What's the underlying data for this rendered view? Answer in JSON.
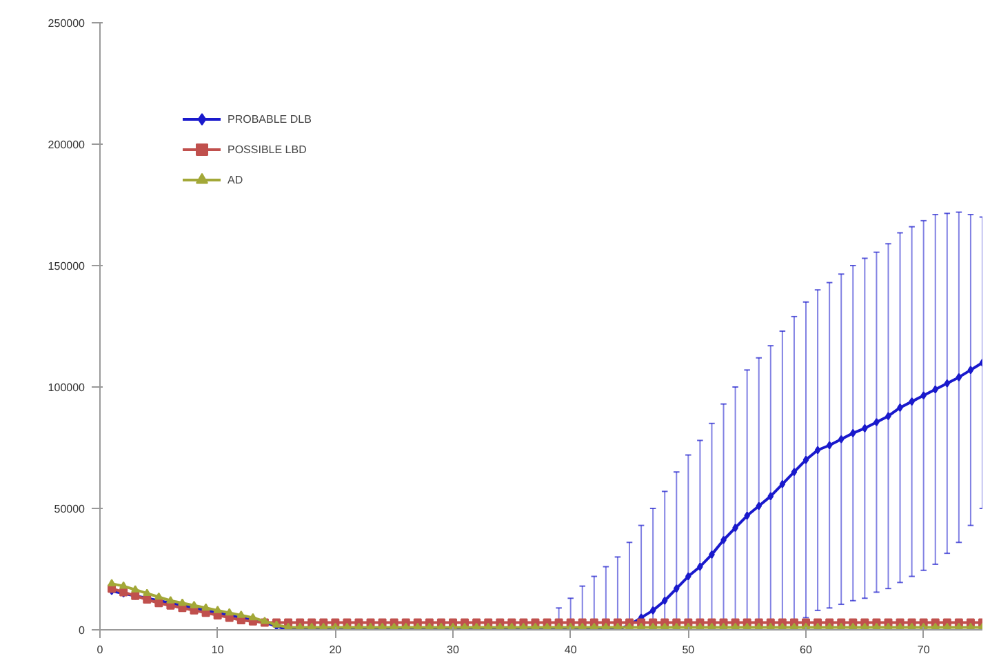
{
  "chart_data": {
    "type": "line",
    "xlim": [
      0,
      75
    ],
    "ylim": [
      0,
      250000
    ],
    "xticks": [
      0,
      10,
      20,
      30,
      40,
      50,
      60,
      70
    ],
    "yticks": [
      0,
      50000,
      100000,
      150000,
      200000,
      250000
    ],
    "grid": false,
    "legend": "top left",
    "line_style": "solid",
    "x": [
      1,
      2,
      3,
      4,
      5,
      6,
      7,
      8,
      9,
      10,
      11,
      12,
      13,
      14,
      15,
      16,
      17,
      18,
      19,
      20,
      21,
      22,
      23,
      24,
      25,
      26,
      27,
      28,
      29,
      30,
      31,
      32,
      33,
      34,
      35,
      36,
      37,
      38,
      39,
      40,
      41,
      42,
      43,
      44,
      45,
      46,
      47,
      48,
      49,
      50,
      51,
      52,
      53,
      54,
      55,
      56,
      57,
      58,
      59,
      60,
      61,
      62,
      63,
      64,
      65,
      66,
      67,
      68,
      69,
      70,
      71,
      72,
      73,
      74,
      75
    ],
    "series": [
      {
        "name": "PROBABLE DLB",
        "color": "#1a1acc",
        "marker": "diamond",
        "values": [
          16000,
          15000,
          14000,
          13000,
          12000,
          11000,
          10000,
          9000,
          8000,
          7000,
          6000,
          5000,
          4000,
          3000,
          1500,
          0,
          0,
          0,
          0,
          0,
          0,
          0,
          0,
          0,
          0,
          0,
          0,
          0,
          0,
          0,
          0,
          0,
          0,
          0,
          0,
          0,
          0,
          0,
          0,
          0,
          0,
          0,
          0,
          0,
          2000,
          5000,
          8000,
          12000,
          17000,
          22000,
          26000,
          31000,
          37000,
          42000,
          47000,
          51000,
          55000,
          60000,
          65000,
          70000,
          74000,
          76000,
          78500,
          81000,
          83000,
          85500,
          88000,
          91500,
          94000,
          96500,
          99000,
          101500,
          104000,
          107000,
          110000
        ],
        "errors": [
          null,
          null,
          null,
          null,
          null,
          null,
          null,
          null,
          null,
          null,
          null,
          null,
          null,
          null,
          null,
          null,
          null,
          null,
          null,
          null,
          null,
          null,
          null,
          null,
          null,
          null,
          null,
          null,
          null,
          null,
          null,
          null,
          null,
          null,
          null,
          null,
          null,
          null,
          [
            0,
            9000
          ],
          [
            0,
            13000
          ],
          [
            0,
            18000
          ],
          [
            0,
            22000
          ],
          [
            0,
            26000
          ],
          [
            0,
            30000
          ],
          [
            0,
            36000
          ],
          [
            0,
            43000
          ],
          [
            0,
            50000
          ],
          [
            0,
            57000
          ],
          [
            0,
            65000
          ],
          [
            0,
            72000
          ],
          [
            0,
            78000
          ],
          [
            0,
            85000
          ],
          [
            0,
            93000
          ],
          [
            0,
            100000
          ],
          [
            0,
            107000
          ],
          [
            0,
            112000
          ],
          [
            0,
            117000
          ],
          [
            0,
            123000
          ],
          64000,
          65000,
          66000,
          67000,
          68000,
          69000,
          70000,
          70000,
          71000,
          72000,
          72000,
          72000,
          72000,
          70000,
          68000,
          64000,
          60000
        ]
      },
      {
        "name": "POSSIBLE LBD",
        "color": "#c0504d",
        "marker": "square",
        "values": [
          17000,
          15500,
          14000,
          12500,
          11000,
          10000,
          9000,
          8000,
          7000,
          6000,
          5000,
          4000,
          3500,
          3000,
          3000,
          3000,
          3000,
          3000,
          3000,
          3000,
          3000,
          3000,
          3000,
          3000,
          3000,
          3000,
          3000,
          3000,
          3000,
          3000,
          3000,
          3000,
          3000,
          3000,
          3000,
          3000,
          3000,
          3000,
          3000,
          3000,
          3000,
          3000,
          3000,
          3000,
          3000,
          3000,
          3000,
          3000,
          3000,
          3000,
          3000,
          3000,
          3000,
          3000,
          3000,
          3000,
          3000,
          3000,
          3000,
          3000,
          3000,
          3000,
          3000,
          3000,
          3000,
          3000,
          3000,
          3000,
          3000,
          3000,
          3000,
          3000,
          3000,
          3000,
          3000
        ]
      },
      {
        "name": "AD",
        "color": "#a3a838",
        "marker": "triangle",
        "values": [
          19000,
          18000,
          16500,
          15000,
          13500,
          12000,
          11000,
          10000,
          9000,
          8000,
          7000,
          6000,
          5000,
          3500,
          2000,
          1000,
          1000,
          1000,
          1000,
          1000,
          1000,
          1000,
          1000,
          1000,
          1000,
          1000,
          1000,
          1000,
          1000,
          1000,
          1000,
          1000,
          1000,
          1000,
          1000,
          1000,
          1000,
          1000,
          1000,
          1000,
          1000,
          1000,
          1000,
          1000,
          1000,
          1000,
          1000,
          1000,
          1000,
          1000,
          1000,
          1000,
          1000,
          1000,
          1000,
          1000,
          1000,
          1000,
          1000,
          1000,
          1000,
          1000,
          1000,
          1000,
          1000,
          1000,
          1000,
          1000,
          1000,
          1000,
          1000,
          1000,
          1000,
          1000,
          1000
        ]
      }
    ]
  }
}
